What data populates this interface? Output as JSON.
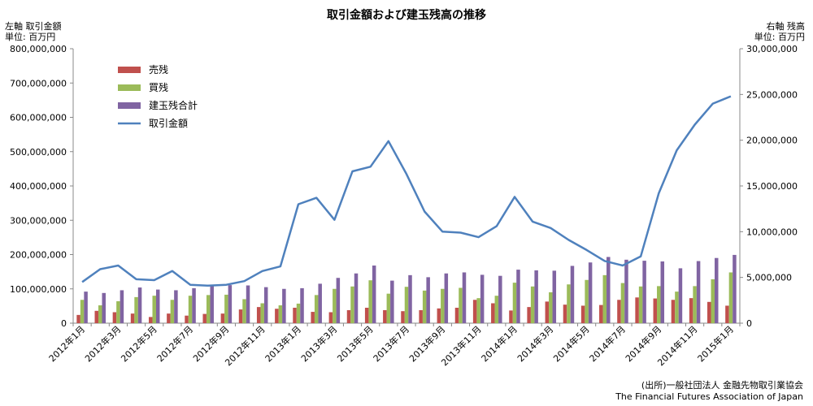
{
  "chart_data": {
    "type": "bar",
    "title": "取引金額および建玉残高の推移",
    "left_axis": {
      "label_line1": "左軸 取引金額",
      "label_line2": "単位: 百万円",
      "ylim": [
        0,
        800000000
      ],
      "ticks": [
        "0",
        "100,000,000",
        "200,000,000",
        "300,000,000",
        "400,000,000",
        "500,000,000",
        "600,000,000",
        "700,000,000",
        "800,000,000"
      ]
    },
    "right_axis": {
      "label_line1": "右軸 残高",
      "label_line2": "単位: 百万円",
      "ylim": [
        0,
        30000000
      ],
      "ticks": [
        "0",
        "5,000,000",
        "10,000,000",
        "15,000,000",
        "20,000,000",
        "25,000,000",
        "30,000,000"
      ]
    },
    "categories": [
      "2012年1月",
      "2012年2月",
      "2012年3月",
      "2012年4月",
      "2012年5月",
      "2012年6月",
      "2012年7月",
      "2012年8月",
      "2012年9月",
      "2012年10月",
      "2012年11月",
      "2012年12月",
      "2013年1月",
      "2013年2月",
      "2013年3月",
      "2013年4月",
      "2013年5月",
      "2013年6月",
      "2013年7月",
      "2013年8月",
      "2013年9月",
      "2013年10月",
      "2013年11月",
      "2013年12月",
      "2014年1月",
      "2014年2月",
      "2014年3月",
      "2014年4月",
      "2014年5月",
      "2014年6月",
      "2014年7月",
      "2014年8月",
      "2014年9月",
      "2014年10月",
      "2014年11月",
      "2014年12月",
      "2015年1月"
    ],
    "x_tick_labels": [
      "2012年1月",
      "2012年3月",
      "2012年5月",
      "2012年7月",
      "2012年9月",
      "2012年11月",
      "2013年1月",
      "2013年3月",
      "2013年5月",
      "2013年7月",
      "2013年9月",
      "2013年11月",
      "2014年1月",
      "2014年3月",
      "2014年5月",
      "2014年7月",
      "2014年9月",
      "2014年11月",
      "2015年1月"
    ],
    "series": [
      {
        "name": "売残",
        "kind": "bar",
        "axis": "left",
        "color": "#c0504d",
        "values": [
          24000000,
          36000000,
          32000000,
          28000000,
          18000000,
          28000000,
          22000000,
          27000000,
          28000000,
          40000000,
          47000000,
          42000000,
          45000000,
          33000000,
          32000000,
          38000000,
          45000000,
          38000000,
          35000000,
          38000000,
          43000000,
          45000000,
          68000000,
          58000000,
          37000000,
          47000000,
          63000000,
          54000000,
          51000000,
          53000000,
          68000000,
          75000000,
          72000000,
          68000000,
          73000000,
          62000000,
          51000000
        ]
      },
      {
        "name": "買残",
        "kind": "bar",
        "axis": "left",
        "color": "#9bbb59",
        "values": [
          68000000,
          52000000,
          64000000,
          76000000,
          80000000,
          68000000,
          80000000,
          82000000,
          83000000,
          70000000,
          58000000,
          52000000,
          57000000,
          82000000,
          100000000,
          107000000,
          125000000,
          86000000,
          106000000,
          95000000,
          100000000,
          103000000,
          73000000,
          80000000,
          118000000,
          107000000,
          90000000,
          113000000,
          126000000,
          140000000,
          117000000,
          107000000,
          108000000,
          92000000,
          108000000,
          128000000,
          148000000
        ]
      },
      {
        "name": "建玉残合計",
        "kind": "bar",
        "axis": "left",
        "color": "#8064a2",
        "values": [
          92000000,
          88000000,
          96000000,
          104000000,
          98000000,
          96000000,
          102000000,
          109000000,
          111000000,
          110000000,
          105000000,
          100000000,
          102000000,
          115000000,
          132000000,
          145000000,
          168000000,
          124000000,
          140000000,
          134000000,
          145000000,
          148000000,
          141000000,
          138000000,
          156000000,
          154000000,
          153000000,
          167000000,
          177000000,
          193000000,
          185000000,
          182000000,
          180000000,
          160000000,
          181000000,
          190000000,
          199000000
        ]
      },
      {
        "name": "取引金額",
        "kind": "line",
        "axis": "right",
        "color": "#4f81bd",
        "values": [
          4500000,
          5900000,
          6300000,
          4800000,
          4700000,
          5700000,
          4200000,
          4100000,
          4200000,
          4600000,
          5700000,
          6200000,
          13000000,
          13700000,
          11300000,
          16600000,
          17100000,
          19900000,
          16300000,
          12200000,
          10000000,
          9900000,
          9400000,
          10600000,
          13800000,
          11100000,
          10400000,
          9100000,
          8000000,
          6800000,
          6300000,
          7300000,
          14200000,
          18900000,
          21700000,
          24000000,
          24800000
        ]
      }
    ],
    "legend_position": "upper-left",
    "grid": false
  },
  "source": {
    "line1": "(出所)一般社団法人 金融先物取引業協会",
    "line2": "The Financial Futures Association of Japan"
  }
}
